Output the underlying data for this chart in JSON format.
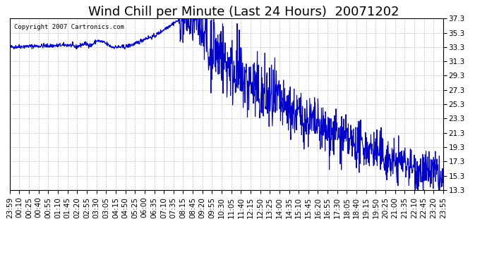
{
  "title": "Wind Chill per Minute (Last 24 Hours)  20071202",
  "copyright": "Copyright 2007 Cartronics.com",
  "line_color": "#0000CC",
  "background_color": "#ffffff",
  "plot_bg_color": "#ffffff",
  "grid_color": "#aaaaaa",
  "ylim": [
    13.3,
    37.3
  ],
  "yticks": [
    13.3,
    15.3,
    17.3,
    19.3,
    21.3,
    23.3,
    25.3,
    27.3,
    29.3,
    31.3,
    33.3,
    35.3,
    37.3
  ],
  "xtick_labels": [
    "23:59",
    "00:10",
    "00:25",
    "00:40",
    "00:55",
    "01:10",
    "01:45",
    "02:20",
    "02:55",
    "03:30",
    "03:05",
    "04:15",
    "04:50",
    "05:25",
    "06:00",
    "06:35",
    "07:10",
    "07:35",
    "08:15",
    "08:45",
    "09:20",
    "09:55",
    "10:30",
    "11:05",
    "11:40",
    "12:15",
    "12:50",
    "13:25",
    "14:00",
    "14:35",
    "15:10",
    "15:45",
    "16:20",
    "16:55",
    "17:30",
    "18:05",
    "18:40",
    "19:15",
    "19:50",
    "20:25",
    "21:00",
    "21:35",
    "22:10",
    "22:45",
    "23:20",
    "23:55"
  ],
  "title_fontsize": 13,
  "tick_fontsize": 7.5,
  "line_width": 0.8
}
